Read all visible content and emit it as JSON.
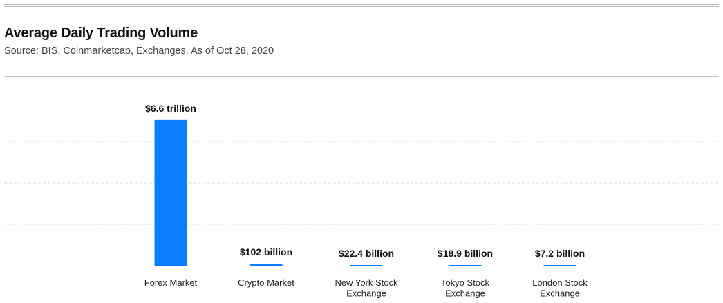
{
  "header": {
    "title": "Average Daily Trading Volume",
    "subtitle": "Source: BIS, Coinmarketcap, Exchanges. As of Oct 28, 2020"
  },
  "chart_data": {
    "type": "bar",
    "title": "Average Daily Trading Volume",
    "subtitle": "Source: BIS, Coinmarketcap, Exchanges. As of Oct 28, 2020",
    "xlabel": "",
    "ylabel": "",
    "unit": "USD billion",
    "categories": [
      [
        "Forex Market"
      ],
      [
        "Crypto Market"
      ],
      [
        "New York Stock",
        "Exchange"
      ],
      [
        "Tokyo Stock",
        "Exchange"
      ],
      [
        "London Stock",
        "Exchange"
      ]
    ],
    "values": [
      6600,
      102,
      22.4,
      18.9,
      7.2
    ],
    "data_labels": [
      "$6.6 trillion",
      "$102 billion",
      "$22.4 billion",
      "$18.9 billion",
      "$7.2 billion"
    ],
    "ylim": [
      0,
      7500
    ],
    "grid": true,
    "legend": "none",
    "colors": {
      "bar": "#0a7cff",
      "grid": "#dcdcdc",
      "axis": "#9a9a9a"
    }
  }
}
